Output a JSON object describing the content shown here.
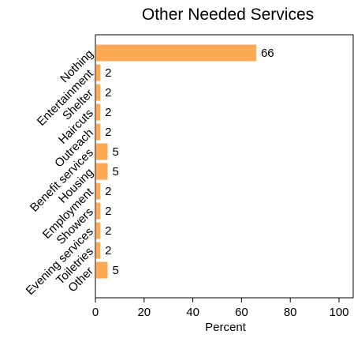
{
  "chart_data": {
    "type": "bar",
    "orientation": "horizontal",
    "title": "Other Needed Services",
    "xlabel": "Percent",
    "ylabel": "",
    "xlim": [
      0,
      105
    ],
    "xticks": [
      0,
      20,
      40,
      60,
      80,
      100
    ],
    "categories": [
      "Nothing",
      "Entertainment",
      "Shelter",
      "Haircuts",
      "Outreach",
      "Benefit services",
      "Housing",
      "Employment",
      "Showers",
      "Evening services",
      "Toiletries",
      "Other"
    ],
    "values": [
      66,
      2,
      2,
      2,
      2,
      5,
      5,
      2,
      2,
      2,
      2,
      5
    ],
    "data_labels": [
      "66",
      "2",
      "2",
      "2",
      "2",
      "5",
      "5",
      "2",
      "2",
      "2",
      "2",
      "5"
    ],
    "bar_color": "#FDAA57",
    "grid": false,
    "legend": "none"
  }
}
